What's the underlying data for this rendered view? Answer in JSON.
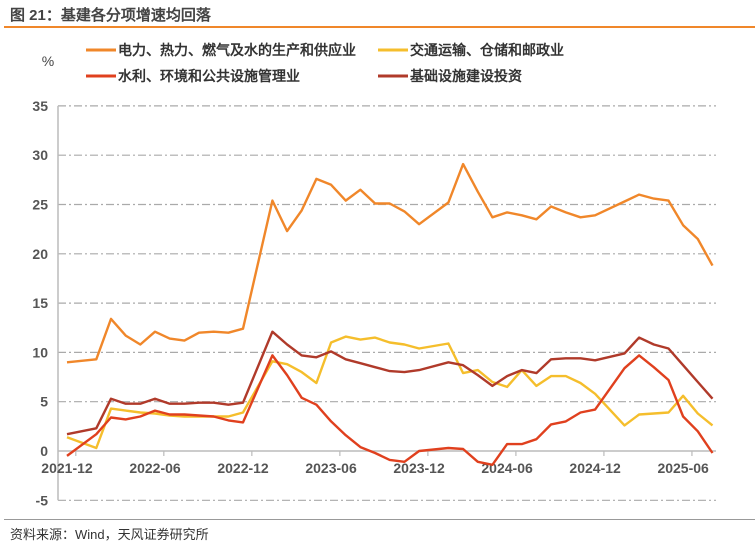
{
  "title": "图 21：基建各分项增速均回落",
  "source": "资料来源：Wind，天风证券研究所",
  "chart_data": {
    "type": "line",
    "title": "图 21：基建各分项增速均回落",
    "ylabel": "%",
    "xlabel": "",
    "ylim": [
      -5,
      35
    ],
    "yticks": [
      -5,
      0,
      5,
      10,
      15,
      20,
      25,
      30,
      35
    ],
    "grid": true,
    "legend_position": "top",
    "x_tick_labels": [
      "2021-12",
      "2022-06",
      "2022-12",
      "2023-06",
      "2023-12",
      "2024-06",
      "2024-12",
      "2025-06"
    ],
    "x": [
      "2021-12",
      "2022-01",
      "2022-02",
      "2022-03",
      "2022-04",
      "2022-05",
      "2022-06",
      "2022-07",
      "2022-08",
      "2022-09",
      "2022-10",
      "2022-11",
      "2022-12",
      "2023-01",
      "2023-02",
      "2023-03",
      "2023-04",
      "2023-05",
      "2023-06",
      "2023-07",
      "2023-08",
      "2023-09",
      "2023-10",
      "2023-11",
      "2023-12",
      "2024-01",
      "2024-02",
      "2024-03",
      "2024-04",
      "2024-05",
      "2024-06",
      "2024-07",
      "2024-08",
      "2024-09",
      "2024-10",
      "2024-11",
      "2024-12",
      "2025-01",
      "2025-02",
      "2025-03",
      "2025-04",
      "2025-05",
      "2025-06",
      "2025-07",
      "2025-08"
    ],
    "series": [
      {
        "name": "电力、热力、燃气及水的生产和供应业",
        "color": "#F0872A",
        "values": [
          9.0,
          null,
          9.3,
          13.4,
          11.7,
          10.8,
          12.1,
          11.4,
          11.2,
          12.0,
          12.1,
          12.0,
          12.4,
          null,
          25.4,
          22.3,
          24.4,
          27.6,
          27.0,
          25.4,
          26.5,
          25.1,
          25.1,
          24.3,
          23.0,
          null,
          25.2,
          29.1,
          26.3,
          23.7,
          24.2,
          23.9,
          23.5,
          24.8,
          24.2,
          23.7,
          23.9,
          null,
          25.3,
          26.0,
          25.6,
          25.4,
          22.9,
          21.5,
          18.8
        ]
      },
      {
        "name": "交通运输、仓储和邮政业",
        "color": "#F5BE2C",
        "values": [
          1.4,
          null,
          0.3,
          4.3,
          4.1,
          3.9,
          3.8,
          3.6,
          3.5,
          3.5,
          3.5,
          3.5,
          3.9,
          null,
          9.1,
          8.8,
          8.0,
          6.9,
          11.0,
          11.6,
          11.3,
          11.5,
          11.0,
          10.8,
          10.4,
          null,
          10.9,
          7.9,
          8.2,
          7.0,
          6.5,
          8.2,
          6.6,
          7.6,
          7.6,
          6.9,
          5.8,
          null,
          2.6,
          3.7,
          3.8,
          3.9,
          5.6,
          3.8,
          2.6
        ]
      },
      {
        "name": "水利、环境和公共设施管理业",
        "color": "#E0401E",
        "values": [
          -0.5,
          null,
          1.7,
          3.4,
          3.2,
          3.5,
          4.1,
          3.7,
          3.7,
          3.6,
          3.5,
          3.1,
          2.9,
          null,
          9.7,
          7.7,
          5.4,
          4.7,
          3.0,
          1.6,
          0.4,
          -0.2,
          -0.9,
          -1.1,
          0.0,
          null,
          0.3,
          0.2,
          -1.1,
          -1.4,
          0.7,
          0.7,
          1.2,
          2.7,
          3.0,
          3.9,
          4.2,
          null,
          8.4,
          9.7,
          8.5,
          7.2,
          3.5,
          2.0,
          -0.2
        ]
      },
      {
        "name": "基础设施建设投资",
        "color": "#B03A2A",
        "values": [
          1.7,
          null,
          2.3,
          5.3,
          4.8,
          4.8,
          5.3,
          4.8,
          4.8,
          4.9,
          4.9,
          4.7,
          4.9,
          null,
          12.1,
          10.8,
          9.7,
          9.5,
          10.1,
          9.3,
          8.9,
          8.5,
          8.1,
          8.0,
          8.2,
          null,
          9.0,
          8.7,
          7.7,
          6.6,
          7.6,
          8.2,
          7.9,
          9.3,
          9.4,
          9.4,
          9.2,
          null,
          9.9,
          11.5,
          10.8,
          10.4,
          8.7,
          7.0,
          5.3
        ]
      }
    ]
  }
}
